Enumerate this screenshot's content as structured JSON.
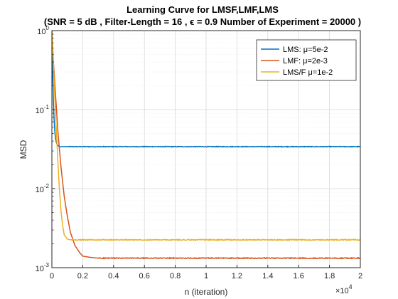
{
  "chart_data": {
    "type": "line",
    "title": "Learning Curve for LMSF,LMF,LMS",
    "subtitle": "(SNR = 5 dB , Filter-Length = 16 , ϵ = 0.9  Number of Experiment = 20000 )",
    "xlabel": "n (iteration)",
    "ylabel": "MSD",
    "x_multiplier_label": "×10",
    "x_multiplier_exp": "4",
    "xlim": [
      0,
      20000
    ],
    "ylim": [
      0.001,
      1
    ],
    "yscale": "log",
    "grid": true,
    "legend_position": "top-right",
    "x_ticks": [
      0,
      2000,
      4000,
      6000,
      8000,
      10000,
      12000,
      14000,
      16000,
      18000,
      20000
    ],
    "x_tick_labels": [
      "0",
      "0.2",
      "0.4",
      "0.6",
      "0.8",
      "1",
      "1.2",
      "1.4",
      "1.6",
      "1.8",
      "2"
    ],
    "y_ticks": [
      0.001,
      0.01,
      0.1,
      1
    ],
    "y_tick_bases": [
      "10",
      "10",
      "10",
      "10"
    ],
    "y_tick_exps": [
      "-3",
      "-2",
      "-1",
      "0"
    ],
    "series": [
      {
        "name": "LMS: μ=5e-2",
        "color": "#0072BD",
        "x": [
          0,
          50,
          100,
          150,
          200,
          250,
          300,
          350,
          400,
          500,
          700,
          1000,
          20000
        ],
        "y": [
          1.0,
          0.3,
          0.12,
          0.07,
          0.05,
          0.042,
          0.038,
          0.036,
          0.035,
          0.034,
          0.034,
          0.034,
          0.034
        ],
        "steady_state": 0.034,
        "noise": 0.02
      },
      {
        "name": "LMF: μ=2e-3",
        "color": "#D95319",
        "x": [
          0,
          100,
          200,
          300,
          400,
          600,
          800,
          1000,
          1200,
          1500,
          1800,
          2000,
          2500,
          3000,
          20000
        ],
        "y": [
          1.0,
          0.4,
          0.2,
          0.1,
          0.05,
          0.018,
          0.008,
          0.0045,
          0.0028,
          0.0019,
          0.00155,
          0.0014,
          0.00135,
          0.00132,
          0.00132
        ],
        "steady_state": 0.00132,
        "noise": 0.025
      },
      {
        "name": "LMS/F μ=1e-2",
        "color": "#EDB120",
        "x": [
          0,
          100,
          200,
          300,
          400,
          500,
          600,
          700,
          800,
          1000,
          1200,
          20000
        ],
        "y": [
          1.0,
          0.35,
          0.13,
          0.05,
          0.02,
          0.009,
          0.005,
          0.0034,
          0.0026,
          0.0023,
          0.00225,
          0.00225
        ],
        "steady_state": 0.00225,
        "noise": 0.025
      }
    ]
  }
}
